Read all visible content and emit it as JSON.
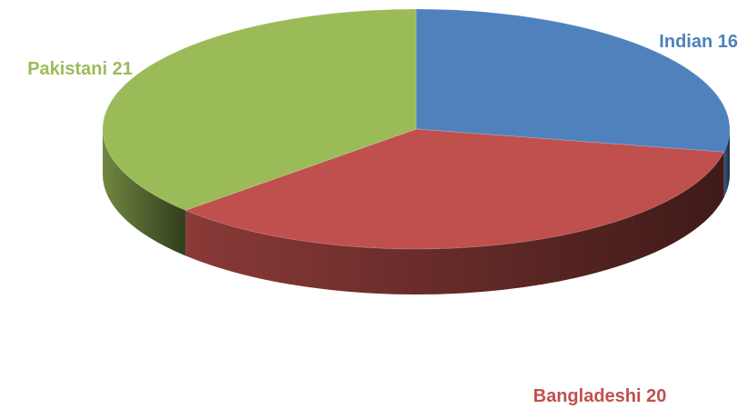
{
  "chart_data": {
    "type": "pie",
    "style": "3d",
    "title": "",
    "legend": "none",
    "slices": [
      {
        "name": "Indian",
        "value": 16,
        "label": "Indian 16",
        "color": "#4F81BD"
      },
      {
        "name": "Bangladeshi",
        "value": 20,
        "label": "Bangladeshi 20",
        "color": "#C0504D"
      },
      {
        "name": "Pakistani",
        "value": 21,
        "label": "Pakistani 21",
        "color": "#9BBB59"
      }
    ]
  }
}
